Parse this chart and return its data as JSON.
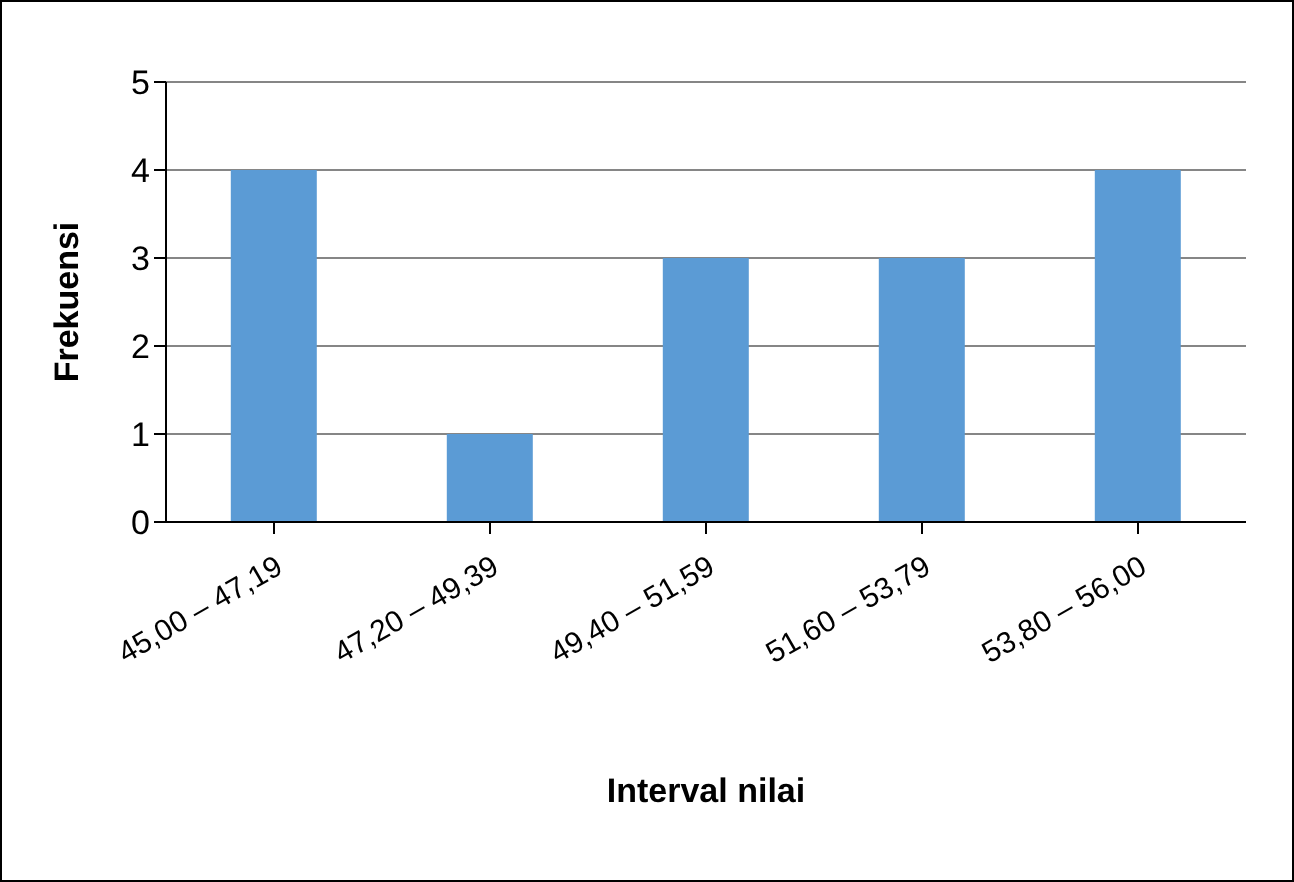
{
  "chart_data": {
    "type": "bar",
    "xlabel": "Interval nilai",
    "ylabel": "Frekuensi",
    "categories": [
      "45,00 – 47,19",
      "47,20 – 49,39",
      "49,40 – 51,59",
      "51,60 – 53,79",
      "53,80 – 56,00"
    ],
    "values": [
      4,
      1,
      3,
      3,
      4
    ],
    "color": "#5b9bd5",
    "ylim": [
      0,
      5
    ],
    "yticks": [
      0,
      1,
      2,
      3,
      4,
      5
    ],
    "grid": "y",
    "legend": false
  }
}
